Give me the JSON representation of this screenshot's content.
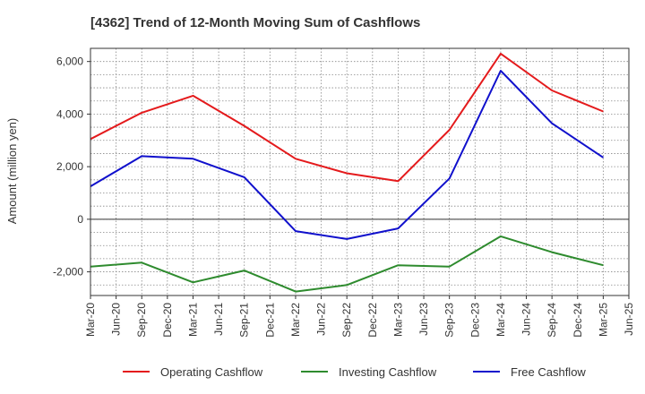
{
  "chart_data": {
    "type": "line",
    "title": "[4362]  Trend of 12-Month Moving Sum of Cashflows",
    "ylabel": "Amount (million yen)",
    "xlabel": "",
    "ylim": [
      -2900,
      6500
    ],
    "yticks": [
      -2000,
      0,
      2000,
      4000,
      6000
    ],
    "ytick_labels": [
      "-2,000",
      "0",
      "2,000",
      "4,000",
      "6,000"
    ],
    "categories": [
      "Mar-20",
      "Jun-20",
      "Sep-20",
      "Dec-20",
      "Mar-21",
      "Jun-21",
      "Sep-21",
      "Dec-21",
      "Mar-22",
      "Jun-22",
      "Sep-22",
      "Dec-22",
      "Mar-23",
      "Jun-23",
      "Sep-23",
      "Dec-23",
      "Mar-24",
      "Jun-24",
      "Sep-24",
      "Dec-24",
      "Mar-25",
      "Jun-25"
    ],
    "grid": true,
    "legend_position": "bottom",
    "series": [
      {
        "name": "Operating Cashflow",
        "color": "#e41a1c",
        "x": [
          "Mar-20",
          "Sep-20",
          "Mar-21",
          "Sep-21",
          "Mar-22",
          "Sep-22",
          "Mar-23",
          "Sep-23",
          "Mar-24",
          "Sep-24",
          "Mar-25"
        ],
        "values": [
          3050,
          4050,
          4700,
          3550,
          2300,
          1750,
          1450,
          3400,
          6300,
          4900,
          4100
        ]
      },
      {
        "name": "Investing Cashflow",
        "color": "#2e8b2e",
        "x": [
          "Mar-20",
          "Sep-20",
          "Mar-21",
          "Sep-21",
          "Mar-22",
          "Sep-22",
          "Mar-23",
          "Sep-23",
          "Mar-24",
          "Sep-24",
          "Mar-25"
        ],
        "values": [
          -1800,
          -1650,
          -2400,
          -1950,
          -2750,
          -2500,
          -1750,
          -1800,
          -650,
          -1250,
          -1750
        ]
      },
      {
        "name": "Free Cashflow",
        "color": "#1010cc",
        "x": [
          "Mar-20",
          "Sep-20",
          "Mar-21",
          "Sep-21",
          "Mar-22",
          "Sep-22",
          "Mar-23",
          "Sep-23",
          "Mar-24",
          "Sep-24",
          "Mar-25"
        ],
        "values": [
          1250,
          2400,
          2300,
          1600,
          -450,
          -750,
          -350,
          1550,
          5650,
          3650,
          2350
        ]
      }
    ]
  }
}
